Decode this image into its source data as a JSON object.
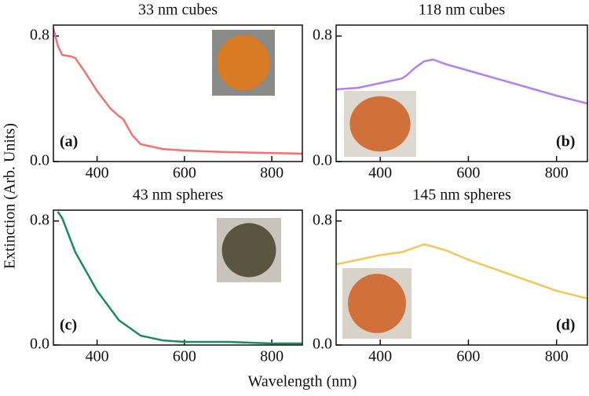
{
  "chart_data": [
    {
      "type": "line",
      "title": "33 nm cubes",
      "annotation": "(a)",
      "x": [
        300,
        310,
        320,
        340,
        350,
        370,
        400,
        430,
        450,
        460,
        480,
        500,
        550,
        600,
        700,
        870
      ],
      "series": [
        {
          "name": "33 nm cubes",
          "color": "#f07272",
          "values": [
            0.85,
            0.74,
            0.68,
            0.67,
            0.66,
            0.58,
            0.45,
            0.34,
            0.29,
            0.27,
            0.17,
            0.11,
            0.08,
            0.07,
            0.06,
            0.05
          ]
        }
      ],
      "xlim": [
        300,
        870
      ],
      "ylim": [
        0,
        0.87
      ],
      "xticks": [
        400,
        600,
        800
      ],
      "yticks": [
        {
          "value": 0,
          "label": "0.0"
        },
        0.8
      ]
    },
    {
      "type": "line",
      "title": "118 nm cubes",
      "annotation": "(b)",
      "x": [
        300,
        350,
        400,
        450,
        460,
        480,
        500,
        520,
        550,
        600,
        700,
        800,
        870
      ],
      "series": [
        {
          "name": "118 nm cubes",
          "color": "#b57ff0",
          "values": [
            0.46,
            0.47,
            0.5,
            0.53,
            0.55,
            0.6,
            0.64,
            0.65,
            0.62,
            0.58,
            0.5,
            0.42,
            0.37
          ]
        }
      ],
      "xlim": [
        300,
        870
      ],
      "ylim": [
        0,
        0.87
      ],
      "xticks": [
        400,
        600,
        800
      ],
      "yticks": [
        {
          "value": 0,
          "label": "0.0"
        },
        0.8
      ]
    },
    {
      "type": "line",
      "title": "43 nm spheres",
      "annotation": "(c)",
      "x": [
        310,
        320,
        350,
        400,
        450,
        500,
        550,
        600,
        700,
        800,
        870
      ],
      "series": [
        {
          "name": "43 nm spheres",
          "color": "#1a8a5f",
          "values": [
            0.86,
            0.82,
            0.6,
            0.35,
            0.16,
            0.06,
            0.03,
            0.02,
            0.02,
            0.01,
            0.01
          ]
        }
      ],
      "xlim": [
        300,
        870
      ],
      "ylim": [
        0,
        0.87
      ],
      "xticks": [
        400,
        600,
        800
      ],
      "yticks": [
        {
          "value": 0,
          "label": "0.0"
        },
        0.8
      ]
    },
    {
      "type": "line",
      "title": "145 nm spheres",
      "annotation": "(d)",
      "x": [
        300,
        350,
        400,
        450,
        480,
        500,
        550,
        600,
        700,
        800,
        870
      ],
      "series": [
        {
          "name": "145 nm spheres",
          "color": "#f0c75a",
          "values": [
            0.52,
            0.55,
            0.58,
            0.6,
            0.63,
            0.65,
            0.61,
            0.55,
            0.45,
            0.35,
            0.3
          ]
        }
      ],
      "xlim": [
        300,
        870
      ],
      "ylim": [
        0,
        0.87
      ],
      "xticks": [
        400,
        600,
        800
      ],
      "yticks": [
        {
          "value": 0,
          "label": "0.0"
        },
        0.8
      ]
    }
  ],
  "shared": {
    "xlabel": "Wavelength (nm)",
    "ylabel": "Extinction (Arb. Units)"
  }
}
